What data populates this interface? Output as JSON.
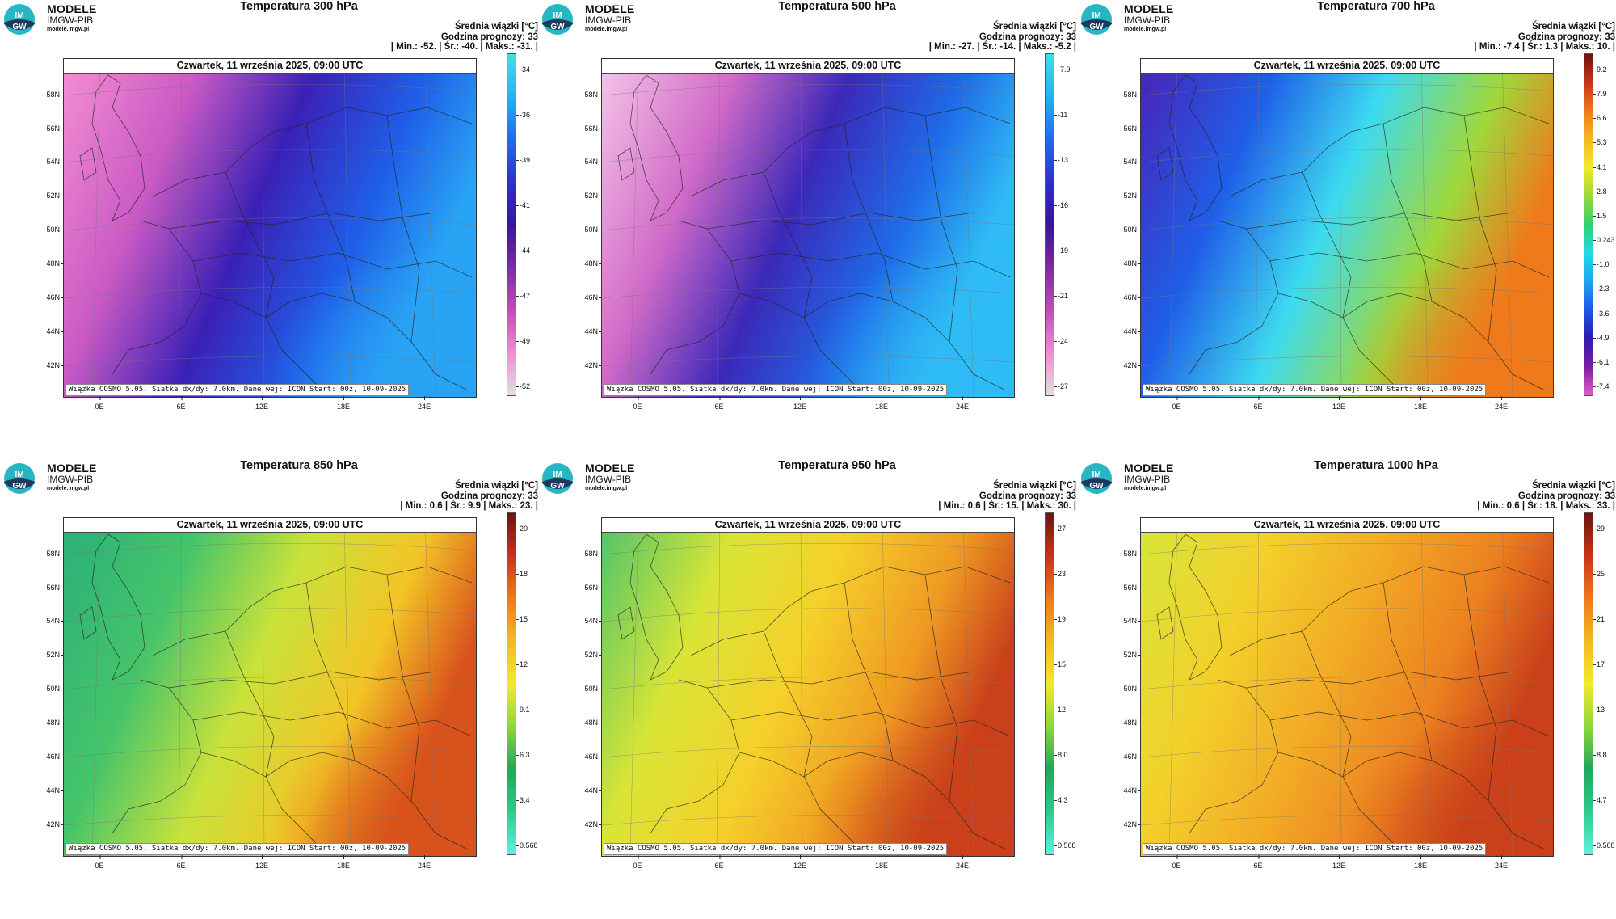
{
  "brand": {
    "line1": "MODELE",
    "line2": "IMGW-PIB",
    "line3": "modele.imgw.pl",
    "logo_text1": "IM",
    "logo_text2": "GW"
  },
  "colors": {
    "logo_teal": "#27b6c3",
    "logo_dark": "#1d3a5c"
  },
  "common": {
    "subtitle_line1": "Średnia wiązki [°C]",
    "subtitle_line2": "Godzina prognozy: 33",
    "date": "Czwartek, 11 września 2025, 09:00 UTC",
    "credits": "Wiązka COSMO 5.05. Siatka dx/dy: 7.0km. Dane wej: ICON Start: 00z, 10-09-2025",
    "lat_labels": [
      "58N",
      "56N",
      "54N",
      "52N",
      "50N",
      "48N",
      "46N",
      "44N",
      "42N"
    ],
    "lon_labels": [
      "0E",
      "6E",
      "12E",
      "18E",
      "24E"
    ]
  },
  "panels": [
    {
      "title": "Temperatura 300 hPa",
      "stats": "| Min.:  -52. | Śr.:  -40. | Maks.:  -31. |",
      "scale": [
        "-34",
        "-36",
        "-39",
        "-41",
        "-44",
        "-47",
        "-49",
        "-52"
      ],
      "colorbar": [
        "#e0e0e0",
        "#f28bd0",
        "#c34bb8",
        "#7c2aa6",
        "#3a1499",
        "#2e2fcf",
        "#1f6bf0",
        "#22b3f5",
        "#3fe0e6"
      ]
    },
    {
      "title": "Temperatura 500 hPa",
      "stats": "| Min.:  -27. | Śr.:  -14. | Maks.:  -5.2 |",
      "scale": [
        "-7.9",
        "-11",
        "-13",
        "-16",
        "-19",
        "-21",
        "-24",
        "-27"
      ],
      "colorbar": [
        "#e0e0e0",
        "#f28bd0",
        "#c34bb8",
        "#7c2aa6",
        "#3a1499",
        "#2e2fcf",
        "#1f6bf0",
        "#22b3f5",
        "#3fe0e6"
      ]
    },
    {
      "title": "Temperatura 700 hPa",
      "stats": "| Min.:  -7.4 | Śr.:  1.3 | Maks.:  10. |",
      "scale": [
        "9.2",
        "7.9",
        "6.6",
        "5.3",
        "4.1",
        "2.8",
        "1.5",
        "0.243",
        "-1.0",
        "-2.3",
        "-3.6",
        "-4.9",
        "-6.1",
        "-7.4"
      ],
      "colorbar": [
        "#e05bc8",
        "#7a1fa0",
        "#2d1bb0",
        "#1f55e8",
        "#1ea4f2",
        "#22d9e8",
        "#2ed36a",
        "#9bd83a",
        "#f2ea2a",
        "#f5b921",
        "#ef7a1c",
        "#c93418",
        "#6b1410"
      ]
    },
    {
      "title": "Temperatura 850 hPa",
      "stats": "| Min.:  0.6 | Śr.:  9.9 | Maks.:  23. |",
      "scale": [
        "20",
        "18",
        "15",
        "12",
        "9.1",
        "6.3",
        "3.4",
        "0.568"
      ],
      "colorbar": [
        "#5ff0e0",
        "#2ecb8a",
        "#1ea85a",
        "#8fd63a",
        "#f2ea2a",
        "#f5b921",
        "#ef7a1c",
        "#c93418",
        "#6b1410"
      ]
    },
    {
      "title": "Temperatura 950 hPa",
      "stats": "| Min.:  0.6 | Śr.:  15. | Maks.:  30. |",
      "scale": [
        "27",
        "23",
        "19",
        "15",
        "12",
        "8.0",
        "4.3",
        "0.568"
      ],
      "colorbar": [
        "#5ff0e0",
        "#2ecb8a",
        "#1ea85a",
        "#8fd63a",
        "#f2ea2a",
        "#f5b921",
        "#ef7a1c",
        "#c93418",
        "#6b1410"
      ]
    },
    {
      "title": "Temperatura 1000 hPa",
      "stats": "| Min.:  0.6 | Śr.:  18. | Maks.:  33. |",
      "scale": [
        "29",
        "25",
        "21",
        "17",
        "13",
        "8.8",
        "4.7",
        "0.568"
      ],
      "colorbar": [
        "#5ff0e0",
        "#2ecb8a",
        "#1ea85a",
        "#8fd63a",
        "#f2ea2a",
        "#f5b921",
        "#ef7a1c",
        "#c93418",
        "#6b1410"
      ]
    }
  ]
}
